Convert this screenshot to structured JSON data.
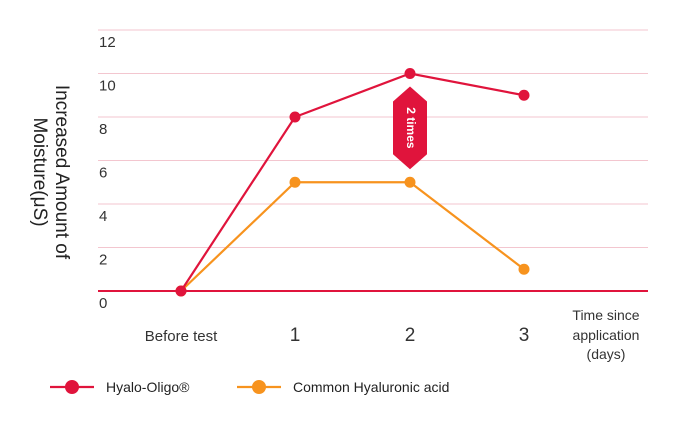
{
  "chart_data": {
    "type": "line",
    "categories": [
      "Before test",
      "1",
      "2",
      "3"
    ],
    "series": [
      {
        "name": "Hyalo-Oligo®",
        "color": "#e0143c",
        "values": [
          0,
          8,
          10,
          9
        ]
      },
      {
        "name": "Common Hyaluronic acid",
        "color": "#f7931e",
        "values": [
          0,
          5,
          5,
          1
        ]
      }
    ],
    "ylabel": [
      "Increased Amount of",
      "Moisture(μS)"
    ],
    "xlabel": [
      "Time since",
      "application",
      "(days)"
    ],
    "ylim": [
      0,
      12
    ],
    "yticks": [
      "0",
      "2",
      "4",
      "6",
      "8",
      "10",
      "12"
    ],
    "grid": true,
    "gridline_color": "#f3c6cf",
    "baseline_color": "#e0143c",
    "annotation": {
      "text": "2 times",
      "category_index": 2,
      "from": 5,
      "to": 10,
      "color": "#e0143c"
    },
    "legend_position": "bottom-left"
  }
}
